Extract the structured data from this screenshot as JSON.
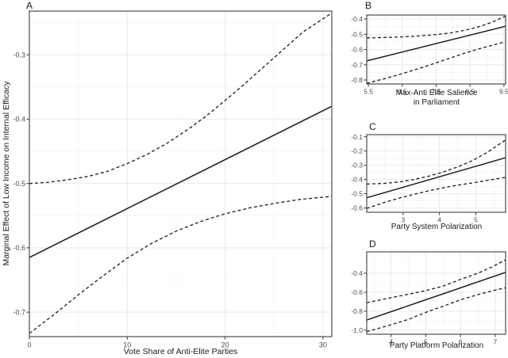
{
  "figure": {
    "description": "Four-panel marginal effects plot with solid estimate lines and dashed 95% confidence-interval bands",
    "background": "#ffffff"
  },
  "colors": {
    "line": "#1c1c1c",
    "grid_major": "#e9e9e9",
    "grid_minor": "#f4f4f4",
    "panel_border": "#4d4d4d",
    "tick_mark": "#333333",
    "tick_text": "#4d4d4d",
    "title_text": "#1a1a1a",
    "background": "#ffffff"
  },
  "chart_data": [
    {
      "panel_label": "A",
      "type": "line",
      "xlabel_lines": [
        "Vote Share of Anti-Elite Parties"
      ],
      "ylabel": "Marginal Effect of Low Income on Internal Efficacy",
      "xlim": [
        0,
        30.9
      ],
      "ylim": [
        -0.738,
        -0.232
      ],
      "xticks": [
        0,
        10,
        20,
        30
      ],
      "xtick_labels": [
        "0",
        "10",
        "20",
        "30"
      ],
      "yticks": [
        -0.3,
        -0.4,
        -0.5,
        -0.6,
        -0.7
      ],
      "ytick_labels": [
        "-0.3",
        "-0.4",
        "-0.5",
        "-0.6",
        "-0.7"
      ],
      "xminor": [
        5,
        15,
        25
      ],
      "yminor": [
        -0.25,
        -0.35,
        -0.45,
        -0.55,
        -0.65
      ],
      "grid": "major+minor",
      "legend": "none",
      "series": [
        {
          "name": "estimate",
          "style": "solid",
          "points": [
            [
              0,
              -0.615
            ],
            [
              30.9,
              -0.38
            ]
          ]
        },
        {
          "name": "ci-upper",
          "style": "dashed",
          "points": [
            [
              0,
              -0.5
            ],
            [
              2,
              -0.498
            ],
            [
              4,
              -0.494
            ],
            [
              6,
              -0.489
            ],
            [
              8,
              -0.481
            ],
            [
              10,
              -0.469
            ],
            [
              12,
              -0.455
            ],
            [
              14,
              -0.438
            ],
            [
              16,
              -0.418
            ],
            [
              18,
              -0.396
            ],
            [
              20,
              -0.371
            ],
            [
              22,
              -0.345
            ],
            [
              24,
              -0.318
            ],
            [
              26,
              -0.291
            ],
            [
              28,
              -0.264
            ],
            [
              30.9,
              -0.235
            ]
          ]
        },
        {
          "name": "ci-lower",
          "style": "dashed",
          "points": [
            [
              0,
              -0.733
            ],
            [
              2.5,
              -0.704
            ],
            [
              5,
              -0.673
            ],
            [
              7.5,
              -0.644
            ],
            [
              10,
              -0.616
            ],
            [
              12.5,
              -0.593
            ],
            [
              15,
              -0.574
            ],
            [
              17.5,
              -0.559
            ],
            [
              20,
              -0.547
            ],
            [
              22.5,
              -0.538
            ],
            [
              25,
              -0.531
            ],
            [
              27.5,
              -0.525
            ],
            [
              30.9,
              -0.52
            ]
          ]
        }
      ]
    },
    {
      "panel_label": "B",
      "type": "line",
      "xlabel_lines": [
        "Max-Anti Elite Salience",
        "in Parliament"
      ],
      "ylabel": "",
      "xlim": [
        5.45,
        9.55
      ],
      "ylim": [
        -0.826,
        -0.374
      ],
      "xticks": [
        5.5,
        6.5,
        7.5,
        8.5,
        9.5
      ],
      "xtick_labels": [
        "5.5",
        "6.5",
        "7.5",
        "8.5",
        "9.5"
      ],
      "yticks": [
        -0.4,
        -0.5,
        -0.6,
        -0.7,
        -0.8
      ],
      "ytick_labels": [
        "-0.4",
        "-0.5",
        "-0.6",
        "-0.7",
        "-0.8"
      ],
      "xminor": [
        6,
        7,
        8,
        9
      ],
      "yminor": [
        -0.45,
        -0.55,
        -0.65,
        -0.75
      ],
      "grid": "major+minor",
      "legend": "none",
      "series": [
        {
          "name": "estimate",
          "style": "solid",
          "points": [
            [
              5.45,
              -0.675
            ],
            [
              9.55,
              -0.447
            ]
          ]
        },
        {
          "name": "ci-upper",
          "style": "dashed",
          "points": [
            [
              5.45,
              -0.524
            ],
            [
              6.0,
              -0.521
            ],
            [
              6.5,
              -0.517
            ],
            [
              7.0,
              -0.511
            ],
            [
              7.5,
              -0.502
            ],
            [
              7.9,
              -0.492
            ],
            [
              8.3,
              -0.476
            ],
            [
              8.7,
              -0.455
            ],
            [
              9.1,
              -0.425
            ],
            [
              9.55,
              -0.382
            ]
          ]
        },
        {
          "name": "ci-lower",
          "style": "dashed",
          "points": [
            [
              5.45,
              -0.822
            ],
            [
              6.0,
              -0.79
            ],
            [
              6.5,
              -0.758
            ],
            [
              7.0,
              -0.724
            ],
            [
              7.5,
              -0.688
            ],
            [
              7.9,
              -0.657
            ],
            [
              8.3,
              -0.627
            ],
            [
              8.7,
              -0.6
            ],
            [
              9.1,
              -0.575
            ],
            [
              9.55,
              -0.549
            ]
          ]
        }
      ]
    },
    {
      "panel_label": "C",
      "type": "line",
      "xlabel_lines": [
        "Party System Polarization"
      ],
      "ylabel": "",
      "xlim": [
        2.0,
        5.82
      ],
      "ylim": [
        -0.63,
        -0.085
      ],
      "xticks": [
        3,
        4,
        5
      ],
      "xtick_labels": [
        "3",
        "4",
        "5"
      ],
      "yticks": [
        -0.1,
        -0.2,
        -0.3,
        -0.4,
        -0.5,
        -0.6
      ],
      "ytick_labels": [
        "-0.1",
        "-0.2",
        "-0.3",
        "-0.4",
        "-0.5",
        "-0.6"
      ],
      "xminor": [
        2.5,
        3.5,
        4.5,
        5.5
      ],
      "yminor": [
        -0.15,
        -0.25,
        -0.35,
        -0.45,
        -0.55
      ],
      "grid": "major+minor",
      "legend": "none",
      "series": [
        {
          "name": "estimate",
          "style": "solid",
          "points": [
            [
              2.0,
              -0.528
            ],
            [
              5.82,
              -0.247
            ]
          ]
        },
        {
          "name": "ci-upper",
          "style": "dashed",
          "points": [
            [
              2.0,
              -0.432
            ],
            [
              2.5,
              -0.427
            ],
            [
              2.9,
              -0.417
            ],
            [
              3.3,
              -0.4
            ],
            [
              3.7,
              -0.377
            ],
            [
              4.1,
              -0.348
            ],
            [
              4.5,
              -0.312
            ],
            [
              4.9,
              -0.268
            ],
            [
              5.3,
              -0.212
            ],
            [
              5.82,
              -0.122
            ]
          ]
        },
        {
          "name": "ci-lower",
          "style": "dashed",
          "points": [
            [
              2.0,
              -0.603
            ],
            [
              2.5,
              -0.56
            ],
            [
              2.9,
              -0.53
            ],
            [
              3.3,
              -0.504
            ],
            [
              3.7,
              -0.48
            ],
            [
              4.1,
              -0.458
            ],
            [
              4.5,
              -0.44
            ],
            [
              4.9,
              -0.424
            ],
            [
              5.3,
              -0.407
            ],
            [
              5.82,
              -0.385
            ]
          ]
        }
      ]
    },
    {
      "panel_label": "D",
      "type": "line",
      "xlabel_lines": [
        "Party Platform Polarization"
      ],
      "ylabel": "",
      "xlim": [
        3.3,
        7.3
      ],
      "ylim": [
        -1.042,
        -0.175
      ],
      "xticks": [
        4,
        5,
        6,
        7
      ],
      "xtick_labels": [
        "4",
        "5",
        "6",
        "7"
      ],
      "yticks": [
        -0.4,
        -0.6,
        -0.8,
        -1.0
      ],
      "ytick_labels": [
        "-0.4",
        "-0.6",
        "-0.8",
        "-1.0"
      ],
      "xminor": [
        3.5,
        4.5,
        5.5,
        6.5
      ],
      "yminor": [
        -0.3,
        -0.5,
        -0.7,
        -0.9
      ],
      "grid": "major+minor",
      "legend": "none",
      "series": [
        {
          "name": "estimate",
          "style": "solid",
          "points": [
            [
              3.3,
              -0.893
            ],
            [
              7.3,
              -0.39
            ]
          ]
        },
        {
          "name": "ci-upper",
          "style": "dashed",
          "points": [
            [
              3.3,
              -0.71
            ],
            [
              3.9,
              -0.665
            ],
            [
              4.5,
              -0.621
            ],
            [
              5.0,
              -0.583
            ],
            [
              5.5,
              -0.535
            ],
            [
              6.0,
              -0.465
            ],
            [
              6.5,
              -0.4
            ],
            [
              6.9,
              -0.335
            ],
            [
              7.3,
              -0.258
            ]
          ]
        },
        {
          "name": "ci-lower",
          "style": "dashed",
          "points": [
            [
              3.3,
              -1.015
            ],
            [
              3.9,
              -0.953
            ],
            [
              4.5,
              -0.886
            ],
            [
              5.0,
              -0.812
            ],
            [
              5.5,
              -0.747
            ],
            [
              6.0,
              -0.68
            ],
            [
              6.5,
              -0.625
            ],
            [
              6.9,
              -0.587
            ],
            [
              7.3,
              -0.553
            ]
          ]
        }
      ]
    }
  ]
}
